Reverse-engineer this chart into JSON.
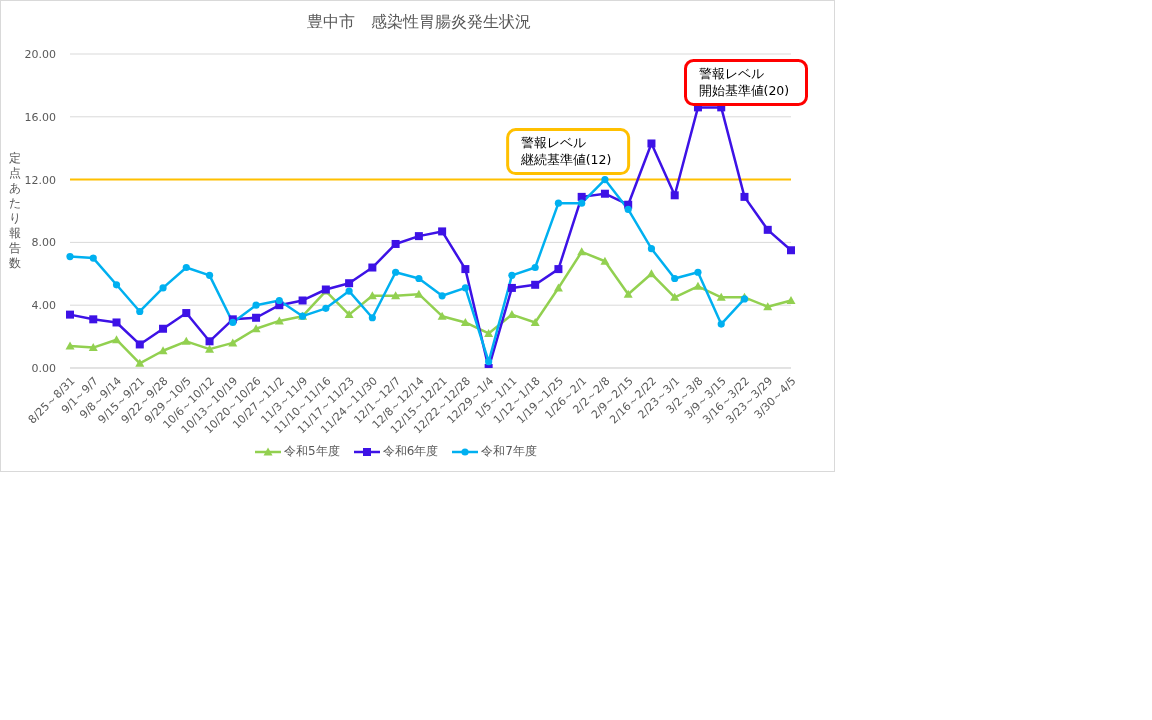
{
  "chart_data": {
    "type": "line",
    "title": "豊中市　感染性胃腸炎発生状況",
    "ylabel": "定点あたり報告数",
    "categories": [
      "8/25～8/31",
      "9/1～9/7",
      "9/8～9/14",
      "9/15～9/21",
      "9/22～9/28",
      "9/29～10/5",
      "10/6～10/12",
      "10/13～10/19",
      "10/20～10/26",
      "10/27～11/2",
      "11/3～11/9",
      "11/10～11/16",
      "11/17～11/23",
      "11/24～11/30",
      "12/1～12/7",
      "12/8～12/14",
      "12/15～12/21",
      "12/22～12/28",
      "12/29～1/4",
      "1/5～1/11",
      "1/12～1/18",
      "1/19～1/25",
      "1/26～2/1",
      "2/2～2/8",
      "2/9～2/15",
      "2/16～2/22",
      "2/23～3/1",
      "3/2～3/8",
      "3/9～3/15",
      "3/16～3/22",
      "3/23～3/29",
      "3/30～4/5"
    ],
    "series": [
      {
        "name": "令和5年度",
        "color": "#92d050",
        "marker": "triangle",
        "values": [
          1.4,
          1.3,
          1.8,
          0.3,
          1.1,
          1.7,
          1.2,
          1.6,
          2.5,
          3.0,
          3.3,
          4.9,
          3.4,
          4.6,
          4.6,
          4.7,
          3.3,
          2.9,
          2.2,
          3.4,
          2.9,
          5.1,
          7.4,
          6.8,
          4.7,
          6.0,
          4.5,
          5.2,
          4.5,
          4.5,
          3.9,
          4.3
        ]
      },
      {
        "name": "令和6年度",
        "color": "#3d12e6",
        "marker": "square",
        "values": [
          3.4,
          3.1,
          2.9,
          1.5,
          2.5,
          3.5,
          1.7,
          3.1,
          3.2,
          4.0,
          4.3,
          5.0,
          5.4,
          6.4,
          7.9,
          8.4,
          8.7,
          6.3,
          0,
          5.1,
          5.3,
          6.3,
          10.9,
          11.1,
          10.4,
          14.3,
          11.0,
          16.6,
          16.6,
          10.9,
          8.8,
          7.5
        ]
      },
      {
        "name": "令和7年度",
        "color": "#00b0f0",
        "marker": "circle",
        "values": [
          7.1,
          7.0,
          5.3,
          3.6,
          5.1,
          6.4,
          5.9,
          2.9,
          4.0,
          4.3,
          3.3,
          3.8,
          4.9,
          3.2,
          6.1,
          5.7,
          4.6,
          5.1,
          0.4,
          5.9,
          6.4,
          10.5,
          10.5,
          12.0,
          10.1,
          7.6,
          5.7,
          6.1,
          2.8,
          4.4,
          null,
          null
        ]
      }
    ],
    "ylim": [
      0,
      20
    ],
    "yticks": [
      {
        "value": 0,
        "label": "0.00"
      },
      {
        "value": 4,
        "label": "4.00"
      },
      {
        "value": 8,
        "label": "8.00"
      },
      {
        "value": 12,
        "label": "12.00"
      },
      {
        "value": 16,
        "label": "16.00"
      },
      {
        "value": 20,
        "label": "20.00"
      }
    ],
    "ref_lines": [
      {
        "axis": "y",
        "value": 12,
        "label": "警報レベル継続基準値(12)",
        "color": "#ffc000"
      }
    ],
    "annotations": [
      "警報レベル開始基準値(20)"
    ],
    "grid": "y",
    "legend": "bottom"
  }
}
